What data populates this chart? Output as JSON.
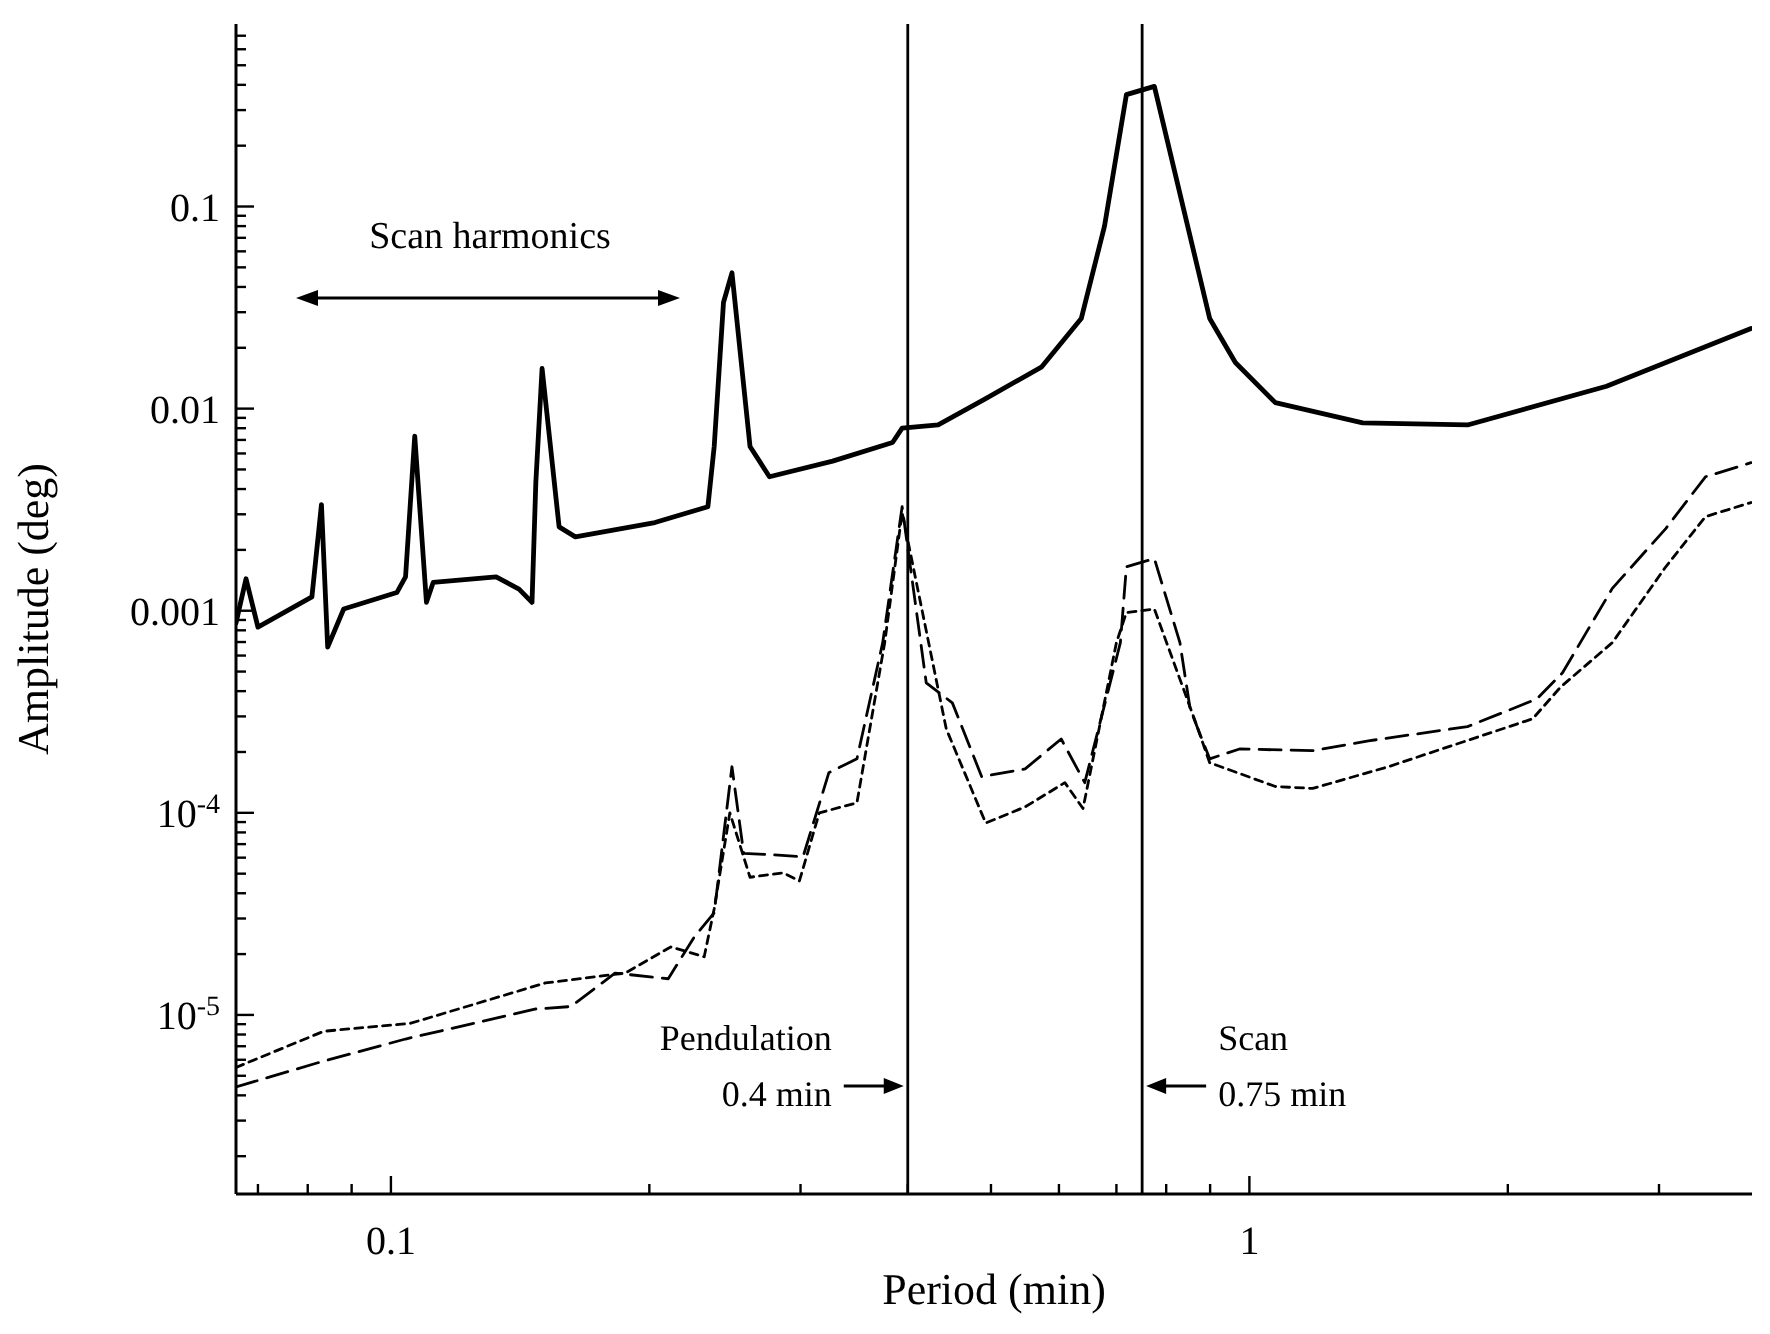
{
  "chart_data": {
    "type": "line",
    "xlabel": "Period (min)",
    "ylabel": "Amplitude (deg)",
    "log": "xy",
    "marker": "none",
    "xlim": [
      0.066,
      3.85
    ],
    "ylim": [
      1.3e-06,
      0.8
    ],
    "xticks": [
      {
        "value": 0.07,
        "label": null
      },
      {
        "value": 0.08,
        "label": null
      },
      {
        "value": 0.09,
        "label": null
      },
      0.1,
      {
        "value": 0.2,
        "label": null
      },
      {
        "value": 0.3,
        "label": null
      },
      {
        "value": 0.4,
        "label": null
      },
      {
        "value": 0.5,
        "label": null
      },
      {
        "value": 0.6,
        "label": null
      },
      {
        "value": 0.7,
        "label": null
      },
      {
        "value": 0.8,
        "label": null
      },
      {
        "value": 0.9,
        "label": null
      },
      1,
      {
        "value": 2,
        "label": null
      },
      {
        "value": 3,
        "label": null
      }
    ],
    "yticks": [
      {
        "value": 2e-06,
        "label": null
      },
      {
        "value": 3e-06,
        "label": null
      },
      {
        "value": 4e-06,
        "label": null
      },
      {
        "value": 5e-06,
        "label": null
      },
      {
        "value": 6e-06,
        "label": null
      },
      {
        "value": 7e-06,
        "label": null
      },
      {
        "value": 8e-06,
        "label": null
      },
      {
        "value": 9e-06,
        "label": null
      },
      {
        "value": 1e-05,
        "label": "10$^{-5}$"
      },
      {
        "value": 2e-05,
        "label": null
      },
      {
        "value": 3e-05,
        "label": null
      },
      {
        "value": 4e-05,
        "label": null
      },
      {
        "value": 5e-05,
        "label": null
      },
      {
        "value": 6e-05,
        "label": null
      },
      {
        "value": 7e-05,
        "label": null
      },
      {
        "value": 8e-05,
        "label": null
      },
      {
        "value": 9e-05,
        "label": null
      },
      {
        "value": 0.0001,
        "label": "10$^{-4}$"
      },
      {
        "value": 0.0002,
        "label": null
      },
      {
        "value": 0.0003,
        "label": null
      },
      {
        "value": 0.0004,
        "label": null
      },
      {
        "value": 0.0005,
        "label": null
      },
      {
        "value": 0.0006,
        "label": null
      },
      {
        "value": 0.0007,
        "label": null
      },
      {
        "value": 0.0008,
        "label": null
      },
      {
        "value": 0.0009,
        "label": null
      },
      0.001,
      {
        "value": 0.002,
        "label": null
      },
      {
        "value": 0.003,
        "label": null
      },
      {
        "value": 0.004,
        "label": null
      },
      {
        "value": 0.005,
        "label": null
      },
      {
        "value": 0.006,
        "label": null
      },
      {
        "value": 0.007,
        "label": null
      },
      {
        "value": 0.008,
        "label": null
      },
      {
        "value": 0.009,
        "label": null
      },
      0.01,
      {
        "value": 0.02,
        "label": null
      },
      {
        "value": 0.03,
        "label": null
      },
      {
        "value": 0.04,
        "label": null
      },
      {
        "value": 0.05,
        "label": null
      },
      {
        "value": 0.06,
        "label": null
      },
      {
        "value": 0.07,
        "label": null
      },
      {
        "value": 0.08,
        "label": null
      },
      {
        "value": 0.09,
        "label": null
      },
      0.1,
      {
        "value": 0.2,
        "label": null
      },
      {
        "value": 0.3,
        "label": null
      },
      {
        "value": 0.4,
        "label": null
      },
      {
        "value": 0.5,
        "label": null
      },
      {
        "value": 0.6,
        "label": null
      },
      {
        "value": 0.7,
        "label": null
      }
    ],
    "series": [
      {
        "color": "#000000",
        "line_style": "solid",
        "x": [
          0.066,
          0.0678,
          0.07,
          0.0809,
          0.083,
          0.0844,
          0.0881,
          0.1016,
          0.104,
          0.1066,
          0.11,
          0.112,
          0.1326,
          0.141,
          0.146,
          0.1475,
          0.15,
          0.157,
          0.164,
          0.203,
          0.234,
          0.238,
          0.244,
          0.2496,
          0.262,
          0.276,
          0.327,
          0.384,
          0.394,
          0.434,
          0.493,
          0.573,
          0.637,
          0.678,
          0.719,
          0.775,
          0.899,
          0.963,
          1.072,
          1.355,
          1.795,
          2.606,
          3.84
        ],
        "values": [
          0.00087,
          0.00144,
          0.00083,
          0.00117,
          0.00335,
          0.00066,
          0.00102,
          0.00123,
          0.00147,
          0.0073,
          0.0011,
          0.00138,
          0.00147,
          0.00128,
          0.0011,
          0.0043,
          0.0158,
          0.0026,
          0.00232,
          0.00273,
          0.00327,
          0.0065,
          0.0335,
          0.047,
          0.0065,
          0.0046,
          0.0055,
          0.0068,
          0.008,
          0.0083,
          0.0112,
          0.0161,
          0.0279,
          0.08,
          0.358,
          0.393,
          0.0279,
          0.0169,
          0.0107,
          0.0085,
          0.0083,
          0.0129,
          0.0249
        ]
      },
      {
        "color": "#000000",
        "line_style": "dashed",
        "x": [
          0.066,
          0.0822,
          0.104,
          0.1475,
          0.162,
          0.1824,
          0.2104,
          0.2256,
          0.238,
          0.2496,
          0.2576,
          0.279,
          0.302,
          0.3237,
          0.349,
          0.374,
          0.394,
          0.4203,
          0.4508,
          0.4877,
          0.548,
          0.6036,
          0.643,
          0.7075,
          0.719,
          0.775,
          0.83,
          0.853,
          0.899,
          0.974,
          1.185,
          1.376,
          1.795,
          2.162,
          2.316,
          2.647,
          3.055,
          3.398,
          3.84
        ],
        "values": [
          4.4e-06,
          5.8e-06,
          7.6e-06,
          1.07e-05,
          1.1e-05,
          1.61e-05,
          1.51e-05,
          2.43e-05,
          3.2e-05,
          0.000169,
          6.3e-05,
          6.2e-05,
          6.05e-05,
          0.000158,
          0.000185,
          0.000695,
          0.00327,
          0.00044,
          0.00035,
          0.000151,
          0.000165,
          0.000232,
          0.000141,
          0.000695,
          0.00165,
          0.00181,
          0.000695,
          0.000327,
          0.000185,
          0.000207,
          0.000203,
          0.000227,
          0.000267,
          0.000366,
          0.000493,
          0.00129,
          0.00255,
          0.0046,
          0.0054
        ]
      },
      {
        "color": "#000000",
        "line_style": "dotted",
        "x": [
          0.066,
          0.0835,
          0.1055,
          0.1514,
          0.1874,
          0.2118,
          0.2317,
          0.238,
          0.2482,
          0.262,
          0.2864,
          0.2991,
          0.3155,
          0.349,
          0.376,
          0.394,
          0.4435,
          0.493,
          0.548,
          0.6096,
          0.64,
          0.7,
          0.719,
          0.775,
          0.866,
          0.899,
          1.072,
          1.185,
          1.451,
          2.138,
          2.305,
          2.647,
          3.055,
          3.398,
          3.84
        ],
        "values": [
          5.5e-06,
          8.3e-06,
          9.1e-06,
          1.44e-05,
          1.61e-05,
          2.17e-05,
          1.94e-05,
          3.35e-05,
          0.0001,
          4.8e-05,
          5.05e-05,
          4.6e-05,
          0.0001,
          0.000112,
          0.000695,
          0.00306,
          0.00026,
          8.9e-05,
          0.000107,
          0.000141,
          0.000105,
          0.000695,
          0.00098,
          0.00102,
          0.000279,
          0.000177,
          0.000135,
          0.000132,
          0.000169,
          0.000292,
          0.00042,
          0.000695,
          0.00165,
          0.00292,
          0.00343
        ]
      }
    ],
    "ref_lines": [
      {
        "axis": "x",
        "value": 0.4,
        "label": "Pendulation\n0.4 min",
        "color": "#000000"
      },
      {
        "axis": "x",
        "value": 0.75,
        "label": "Scan\n0.75 min",
        "color": "#000000"
      }
    ],
    "annotations": [
      "Scan harmonics"
    ]
  }
}
